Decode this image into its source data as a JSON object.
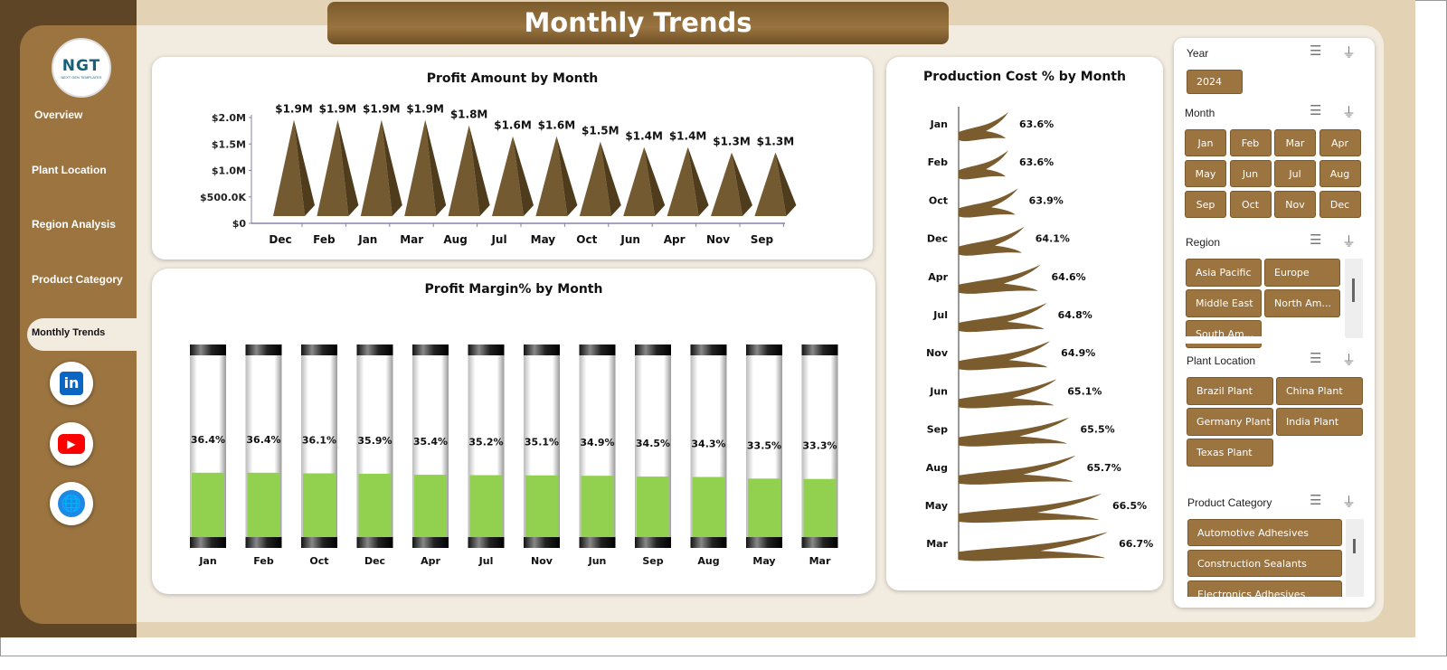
{
  "header": {
    "title": "Monthly Trends"
  },
  "logo": {
    "text": "NGT",
    "sub": "NEXT GEN TEMPLATES"
  },
  "sidebar": {
    "items": [
      {
        "label": "Overview"
      },
      {
        "label": "Plant Location"
      },
      {
        "label": "Region Analysis"
      },
      {
        "label": "Product Category"
      },
      {
        "label": "Monthly Trends",
        "active": true
      }
    ],
    "social": [
      {
        "icon": "linkedin-icon",
        "label": "in",
        "color": "#0a66c2"
      },
      {
        "icon": "youtube-icon",
        "label": "▶",
        "color": "#ff0000"
      },
      {
        "icon": "globe-icon",
        "label": "🌐",
        "color": "#1e88e5"
      }
    ]
  },
  "colors": {
    "brown": "#9b7440",
    "dark_brown": "#6e5026",
    "green": "#92d050"
  },
  "chart_data": [
    {
      "type": "bar",
      "title": "Profit Amount by Month",
      "shape": "pyramid",
      "categories": [
        "Dec",
        "Feb",
        "Jan",
        "Mar",
        "Aug",
        "Jul",
        "May",
        "Oct",
        "Jun",
        "Apr",
        "Nov",
        "Sep"
      ],
      "values": [
        1.9,
        1.9,
        1.9,
        1.9,
        1.8,
        1.6,
        1.6,
        1.5,
        1.4,
        1.4,
        1.3,
        1.3
      ],
      "labels": [
        "$1.9M",
        "$1.9M",
        "$1.9M",
        "$1.9M",
        "$1.8M",
        "$1.6M",
        "$1.6M",
        "$1.5M",
        "$1.4M",
        "$1.4M",
        "$1.3M",
        "$1.3M"
      ],
      "yticks": [
        "$0",
        "$500.0K",
        "$1.0M",
        "$1.5M",
        "$2.0M"
      ],
      "ylim": [
        0,
        2.0
      ],
      "unit": "M"
    },
    {
      "type": "bar",
      "title": "Profit Margin% by Month",
      "shape": "cylinder",
      "categories": [
        "Jan",
        "Feb",
        "Oct",
        "Dec",
        "Apr",
        "Jul",
        "Nov",
        "Jun",
        "Sep",
        "Aug",
        "May",
        "Mar"
      ],
      "values": [
        36.4,
        36.4,
        36.1,
        35.9,
        35.4,
        35.2,
        35.1,
        34.9,
        34.5,
        34.3,
        33.5,
        33.3
      ],
      "labels": [
        "36.4%",
        "36.4%",
        "36.1%",
        "35.9%",
        "35.4%",
        "35.2%",
        "35.1%",
        "34.9%",
        "34.5%",
        "34.3%",
        "33.5%",
        "33.3%"
      ],
      "ylim": [
        0,
        100
      ]
    },
    {
      "type": "bar",
      "orientation": "horizontal",
      "title": "Production Cost % by Month",
      "shape": "flag",
      "categories": [
        "Jan",
        "Feb",
        "Oct",
        "Dec",
        "Apr",
        "Jul",
        "Nov",
        "Jun",
        "Sep",
        "Aug",
        "May",
        "Mar"
      ],
      "values": [
        63.6,
        63.6,
        63.9,
        64.1,
        64.6,
        64.8,
        64.9,
        65.1,
        65.5,
        65.7,
        66.5,
        66.7
      ],
      "labels": [
        "63.6%",
        "63.6%",
        "63.9%",
        "64.1%",
        "64.6%",
        "64.8%",
        "64.9%",
        "65.1%",
        "65.5%",
        "65.7%",
        "66.5%",
        "66.7%"
      ]
    }
  ],
  "slicers": {
    "year": {
      "title": "Year",
      "items": [
        "2024"
      ]
    },
    "month": {
      "title": "Month",
      "items": [
        "Jan",
        "Feb",
        "Mar",
        "Apr",
        "May",
        "Jun",
        "Jul",
        "Aug",
        "Sep",
        "Oct",
        "Nov",
        "Dec"
      ]
    },
    "region": {
      "title": "Region",
      "items": [
        "Asia Pacific",
        "Europe",
        "Middle East",
        "North Am...",
        "South Am..."
      ]
    },
    "plant": {
      "title": "Plant Location",
      "items": [
        "Brazil Plant",
        "China Plant",
        "Germany Plant",
        "India Plant",
        "Texas Plant"
      ]
    },
    "category": {
      "title": "Product Category",
      "items": [
        "Automotive Adhesives",
        "Construction Sealants",
        "Electronics Adhesives"
      ]
    }
  }
}
